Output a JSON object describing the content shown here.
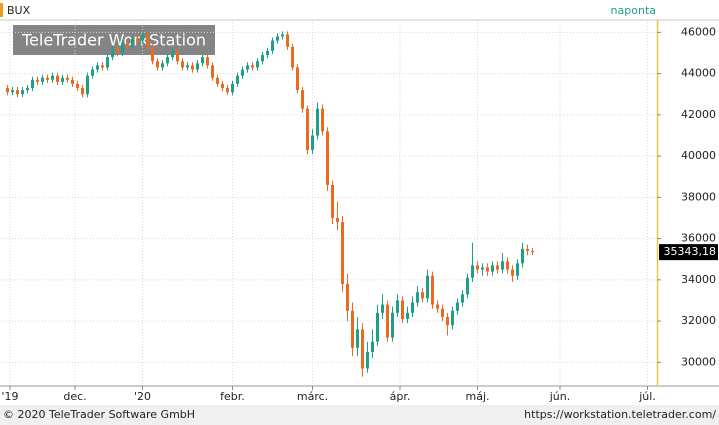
{
  "chart_data": {
    "type": "candlestick",
    "frequency": "naponta",
    "watermark": "TeleTrader WorkStation",
    "footer_left": "© 2020 TeleTrader Software GmbH",
    "footer_right": "https://workstation.teletrader.com/",
    "up_color": "#1f9e8a",
    "down_color": "#ea6a1f",
    "grid": true,
    "series": [
      {
        "name": "BUX",
        "open": [
          43300,
          43100,
          43200,
          43000,
          43200,
          43300,
          43700,
          43600,
          43800,
          43700,
          43900,
          43600,
          43800,
          43700,
          43500,
          43300,
          43000,
          43900,
          44200,
          44400,
          44300,
          44800,
          45200,
          45000,
          45500,
          45300,
          45700,
          45600,
          45900,
          45300,
          44600,
          44300,
          44500,
          44800,
          45100,
          44600,
          44300,
          44400,
          44200,
          44500,
          44800,
          44400,
          43800,
          43500,
          43300,
          43100,
          43500,
          43900,
          44200,
          44400,
          44300,
          44600,
          44900,
          45100,
          45600,
          45800,
          45900,
          45300,
          44300,
          43200,
          42300,
          40300,
          41000,
          42300,
          41200,
          38600,
          37000,
          36800,
          33800,
          32500,
          30700,
          31600,
          29700,
          30500,
          31000,
          32400,
          32800,
          31200,
          32400,
          33000,
          32100,
          32400,
          32900,
          33400,
          33100,
          34200,
          32800,
          32600,
          32200,
          31800,
          32500,
          32900,
          33300,
          34100,
          34700,
          34500,
          34600,
          34400,
          34700,
          34500,
          34900,
          34500,
          34200,
          34800,
          35500,
          35400
        ],
        "high": [
          43450,
          43350,
          43350,
          43350,
          43450,
          43850,
          43850,
          43950,
          43950,
          44050,
          44050,
          43950,
          43950,
          43850,
          43650,
          43450,
          44050,
          44350,
          44550,
          44550,
          44950,
          45350,
          45350,
          45650,
          45650,
          45850,
          45850,
          46100,
          46050,
          45450,
          44750,
          44650,
          44950,
          45250,
          45250,
          44750,
          44550,
          44550,
          44650,
          44950,
          44950,
          44550,
          43950,
          43650,
          43450,
          43650,
          44050,
          44350,
          44550,
          44550,
          44750,
          45050,
          45250,
          45750,
          45950,
          46050,
          46050,
          45450,
          44450,
          43350,
          42450,
          41300,
          42600,
          42500,
          41400,
          38800,
          37800,
          37100,
          34300,
          32900,
          32200,
          31900,
          31000,
          31600,
          32800,
          33300,
          33000,
          32700,
          33300,
          33200,
          32700,
          33200,
          33700,
          33600,
          34500,
          34400,
          33000,
          32800,
          32400,
          32700,
          33100,
          33500,
          34300,
          35800,
          34900,
          34800,
          34800,
          34900,
          34900,
          35300,
          35100,
          34700,
          35000,
          35800,
          35700,
          35550
        ],
        "low": [
          42950,
          42950,
          42850,
          42850,
          43050,
          43150,
          43450,
          43450,
          43550,
          43550,
          43450,
          43450,
          43550,
          43350,
          43150,
          42850,
          42850,
          43750,
          44050,
          44150,
          44150,
          44650,
          44850,
          44850,
          45150,
          45150,
          45450,
          45450,
          45150,
          44450,
          44150,
          44150,
          44350,
          44650,
          44450,
          44150,
          44150,
          44050,
          44050,
          44350,
          44250,
          43650,
          43350,
          43150,
          42950,
          42950,
          43350,
          43750,
          44050,
          44150,
          44150,
          44450,
          44750,
          44950,
          45450,
          45650,
          45150,
          44150,
          43050,
          42100,
          40100,
          40100,
          40800,
          41000,
          38300,
          36700,
          36400,
          33400,
          32000,
          30300,
          30300,
          29300,
          29500,
          30200,
          30800,
          32100,
          31000,
          31000,
          32200,
          31900,
          31900,
          32200,
          32700,
          32900,
          32900,
          32600,
          32400,
          32000,
          31300,
          31600,
          32300,
          32700,
          33100,
          33900,
          34300,
          34200,
          34200,
          34200,
          34300,
          34300,
          34300,
          33900,
          34000,
          34600,
          35200,
          35200
        ],
        "close": [
          43100,
          43200,
          43000,
          43200,
          43300,
          43700,
          43600,
          43800,
          43700,
          43900,
          43600,
          43800,
          43700,
          43500,
          43300,
          43000,
          43900,
          44200,
          44400,
          44300,
          44800,
          45200,
          45000,
          45500,
          45300,
          45700,
          45600,
          45900,
          45300,
          44600,
          44300,
          44500,
          44800,
          45100,
          44600,
          44300,
          44400,
          44200,
          44500,
          44800,
          44400,
          43800,
          43500,
          43300,
          43100,
          43500,
          43900,
          44200,
          44400,
          44300,
          44600,
          44900,
          45100,
          45600,
          45800,
          45900,
          45300,
          44300,
          43200,
          42300,
          40300,
          41000,
          42300,
          41200,
          38600,
          37000,
          36800,
          33800,
          32500,
          30700,
          31600,
          29700,
          30500,
          31000,
          32400,
          32800,
          31200,
          32400,
          33000,
          32100,
          32400,
          32900,
          33400,
          33100,
          34200,
          32800,
          32600,
          32200,
          31800,
          32500,
          32900,
          33300,
          34100,
          34700,
          34500,
          34600,
          34400,
          34700,
          34500,
          34900,
          34500,
          34200,
          34800,
          35500,
          35400,
          35343.18
        ],
        "last_value_label": "35343,18"
      }
    ],
    "xlim": [
      -1.5,
      129.9
    ],
    "xticks": [
      {
        "value": 0.5,
        "label": "'19"
      },
      {
        "value": 13.5,
        "label": "dec."
      },
      {
        "value": 27,
        "label": "'20"
      },
      {
        "value": 45,
        "label": "febr."
      },
      {
        "value": 61,
        "label": "márc."
      },
      {
        "value": 78.5,
        "label": "ápr."
      },
      {
        "value": 94,
        "label": "máj."
      },
      {
        "value": 110.5,
        "label": "jún."
      },
      {
        "value": 128,
        "label": "júl."
      }
    ],
    "ylim": [
      28900,
      46600
    ],
    "yticks": [
      30000,
      32000,
      34000,
      36000,
      38000,
      40000,
      42000,
      44000,
      46000
    ]
  }
}
